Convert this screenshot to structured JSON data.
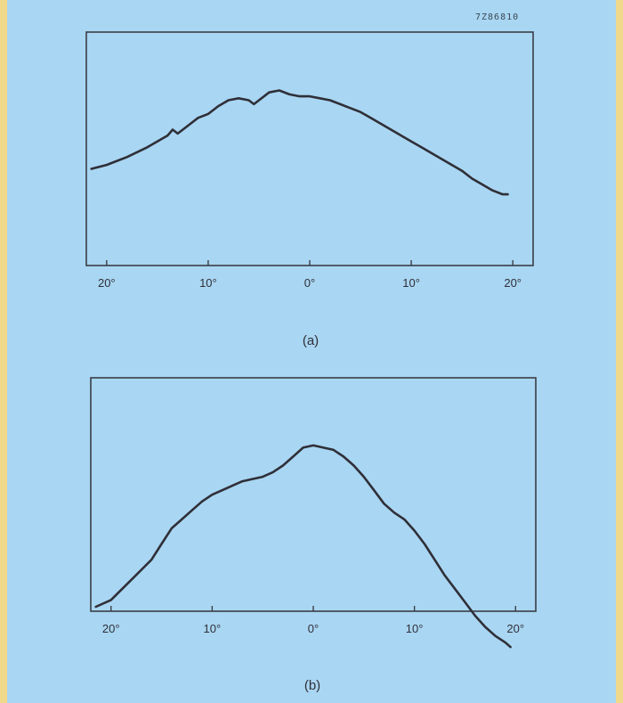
{
  "ref_code": "7Z86810",
  "chart_data": [
    {
      "type": "line",
      "caption": "(a)",
      "xlim": [
        -22,
        22
      ],
      "x_ticks": [
        -20,
        -10,
        0,
        10,
        20
      ],
      "x_tick_labels": [
        "20°",
        "10°",
        "0°",
        "10°",
        "20°"
      ],
      "grid": false,
      "series": [
        {
          "x": [
            -21.5,
            -20,
            -18,
            -16,
            -14,
            -13.5,
            -13,
            -12,
            -11,
            -10,
            -9,
            -8,
            -7,
            -6,
            -5.5,
            -5,
            -4,
            -3,
            -2,
            -1,
            0,
            1,
            2,
            3,
            4,
            5,
            6,
            7,
            8,
            9,
            10,
            11,
            12,
            13,
            14,
            15,
            16,
            17,
            18,
            19,
            19.5
          ],
          "y": [
            0.6,
            0.62,
            0.66,
            0.71,
            0.77,
            0.8,
            0.78,
            0.82,
            0.86,
            0.88,
            0.92,
            0.95,
            0.96,
            0.95,
            0.93,
            0.95,
            0.99,
            1.0,
            0.98,
            0.97,
            0.97,
            0.96,
            0.95,
            0.93,
            0.91,
            0.89,
            0.86,
            0.83,
            0.8,
            0.77,
            0.74,
            0.71,
            0.68,
            0.65,
            0.62,
            0.59,
            0.55,
            0.52,
            0.49,
            0.47,
            0.47
          ]
        }
      ]
    },
    {
      "type": "line",
      "caption": "(b)",
      "xlim": [
        -22,
        22
      ],
      "x_ticks": [
        -20,
        -10,
        0,
        10,
        20
      ],
      "x_tick_labels": [
        "20°",
        "10°",
        "0°",
        "10°",
        "20°"
      ],
      "grid": false,
      "series": [
        {
          "x": [
            -21.5,
            -20,
            -18,
            -16,
            -15,
            -14,
            -13,
            -12,
            -11,
            -10,
            -9,
            -8,
            -7,
            -6,
            -5,
            -4,
            -3,
            -2,
            -1,
            0,
            1,
            2,
            3,
            4,
            5,
            6,
            7,
            8,
            9,
            10,
            11,
            12,
            13,
            14,
            15,
            16,
            17,
            18,
            19,
            19.5
          ],
          "y": [
            0.27,
            0.3,
            0.39,
            0.48,
            0.55,
            0.62,
            0.66,
            0.7,
            0.74,
            0.77,
            0.79,
            0.81,
            0.83,
            0.84,
            0.85,
            0.87,
            0.9,
            0.94,
            0.98,
            0.99,
            0.98,
            0.97,
            0.94,
            0.9,
            0.85,
            0.79,
            0.73,
            0.69,
            0.66,
            0.61,
            0.55,
            0.48,
            0.41,
            0.35,
            0.29,
            0.23,
            0.18,
            0.14,
            0.11,
            0.09
          ]
        }
      ]
    }
  ]
}
